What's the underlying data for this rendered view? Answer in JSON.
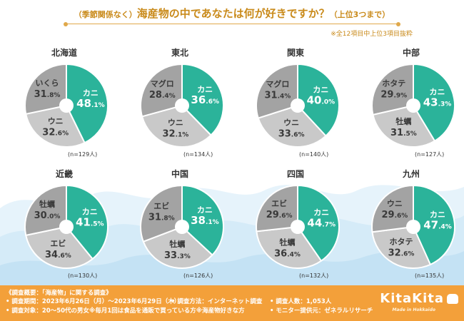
{
  "title": {
    "prefix": "（季節関係なく）",
    "main": "海産物の中であなたは何が好きですか？",
    "suffix": "（上位3つまで）"
  },
  "note": "※全12項目中上位3項目抜粋",
  "colors": {
    "green": "#2bb39a",
    "lightgray": "#c9c9c9",
    "darkgray": "#a3a3a3",
    "footer": "#f3a03a",
    "accent": "#c98a1a"
  },
  "chart_data": [
    {
      "type": "pie",
      "title": "北海道",
      "n": "(n=129人)",
      "slices": [
        {
          "label": "カニ",
          "value": 48.1,
          "color": "#2bb39a"
        },
        {
          "label": "ウニ",
          "value": 32.6,
          "color": "#c9c9c9"
        },
        {
          "label": "いくら",
          "value": 31.8,
          "color": "#a3a3a3"
        }
      ]
    },
    {
      "type": "pie",
      "title": "東北",
      "n": "(n=134人)",
      "slices": [
        {
          "label": "カニ",
          "value": 36.6,
          "color": "#2bb39a"
        },
        {
          "label": "ウニ",
          "value": 32.1,
          "color": "#c9c9c9"
        },
        {
          "label": "マグロ",
          "value": 28.4,
          "color": "#a3a3a3"
        }
      ]
    },
    {
      "type": "pie",
      "title": "関東",
      "n": "(n=140人)",
      "slices": [
        {
          "label": "カニ",
          "value": 40.0,
          "color": "#2bb39a"
        },
        {
          "label": "ウニ",
          "value": 33.6,
          "color": "#c9c9c9"
        },
        {
          "label": "マグロ",
          "value": 31.4,
          "color": "#a3a3a3"
        }
      ]
    },
    {
      "type": "pie",
      "title": "中部",
      "n": "(n=127人)",
      "slices": [
        {
          "label": "カニ",
          "value": 43.3,
          "color": "#2bb39a"
        },
        {
          "label": "牡蠣",
          "value": 31.5,
          "color": "#c9c9c9"
        },
        {
          "label": "ホタテ",
          "value": 29.9,
          "color": "#a3a3a3"
        }
      ]
    },
    {
      "type": "pie",
      "title": "近畿",
      "n": "(n=130人)",
      "slices": [
        {
          "label": "カニ",
          "value": 41.5,
          "color": "#2bb39a"
        },
        {
          "label": "エビ",
          "value": 34.6,
          "color": "#c9c9c9"
        },
        {
          "label": "牡蠣",
          "value": 30.0,
          "color": "#a3a3a3"
        }
      ]
    },
    {
      "type": "pie",
      "title": "中国",
      "n": "(n=126人)",
      "slices": [
        {
          "label": "カニ",
          "value": 38.1,
          "color": "#2bb39a"
        },
        {
          "label": "牡蠣",
          "value": 33.3,
          "color": "#c9c9c9"
        },
        {
          "label": "エビ",
          "value": 31.8,
          "color": "#a3a3a3"
        }
      ]
    },
    {
      "type": "pie",
      "title": "四国",
      "n": "(n=132人)",
      "slices": [
        {
          "label": "カニ",
          "value": 44.7,
          "color": "#2bb39a"
        },
        {
          "label": "牡蠣",
          "value": 36.4,
          "color": "#c9c9c9"
        },
        {
          "label": "エビ",
          "value": 29.6,
          "color": "#a3a3a3"
        }
      ]
    },
    {
      "type": "pie",
      "title": "九州",
      "n": "(n=135人)",
      "slices": [
        {
          "label": "カニ",
          "value": 47.4,
          "color": "#2bb39a"
        },
        {
          "label": "ホタテ",
          "value": 32.6,
          "color": "#c9c9c9"
        },
        {
          "label": "ウニ",
          "value": 29.6,
          "color": "#a3a3a3"
        }
      ]
    }
  ],
  "footer": {
    "line1": "《調査概要：「海産物」に関する調査》",
    "period": "• 調査期間：2023年6月26日（月）～2023年6月29日（木）",
    "method": "• 調査方法：インターネット調査",
    "people": "• 調査人数：1,053人",
    "target": "• 調査対象：20～50代の男女※毎月1回は食品を通販で買っている方※海産物好きな方",
    "monitor": "• モニター提供元：ゼネラルリサーチ",
    "logo": "KitaKita",
    "logo_sub": "Made in Hokkaido"
  }
}
